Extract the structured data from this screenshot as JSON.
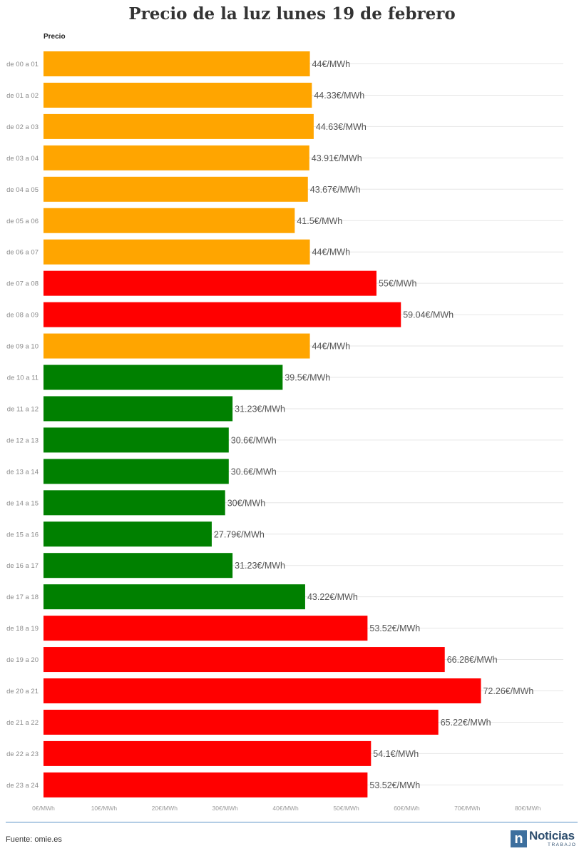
{
  "page": {
    "title": "Precio de la luz lunes 19 de febrero",
    "source": "Fuente: omie.es",
    "logo": {
      "mark": "n",
      "name": "Noticias",
      "sub": "TRABAJO"
    }
  },
  "chart_data": {
    "type": "bar",
    "orientation": "horizontal",
    "series_label": "Precio",
    "categories": [
      "de 00 a 01",
      "de 01 a 02",
      "de 02 a 03",
      "de 03 a 04",
      "de 04 a 05",
      "de 05 a 06",
      "de 06 a 07",
      "de 07 a 08",
      "de 08 a 09",
      "de 09 a 10",
      "de 10 a 11",
      "de 11 a 12",
      "de 12 a 13",
      "de 13 a 14",
      "de 14 a 15",
      "de 15 a 16",
      "de 16 a 17",
      "de 17 a 18",
      "de 18 a 19",
      "de 19 a 20",
      "de 20 a 21",
      "de 21 a 22",
      "de 22 a 23",
      "de 23 a 24"
    ],
    "values": [
      44,
      44.33,
      44.63,
      43.91,
      43.67,
      41.5,
      44,
      55,
      59.04,
      44,
      39.5,
      31.23,
      30.6,
      30.6,
      30,
      27.79,
      31.23,
      43.22,
      53.52,
      66.28,
      72.26,
      65.22,
      54.1,
      53.52
    ],
    "value_labels": [
      "44€/MWh",
      "44.33€/MWh",
      "44.63€/MWh",
      "43.91€/MWh",
      "43.67€/MWh",
      "41.5€/MWh",
      "44€/MWh",
      "55€/MWh",
      "59.04€/MWh",
      "44€/MWh",
      "39.5€/MWh",
      "31.23€/MWh",
      "30.6€/MWh",
      "30.6€/MWh",
      "30€/MWh",
      "27.79€/MWh",
      "31.23€/MWh",
      "43.22€/MWh",
      "53.52€/MWh",
      "66.28€/MWh",
      "72.26€/MWh",
      "65.22€/MWh",
      "54.1€/MWh",
      "53.52€/MWh"
    ],
    "bar_colors": [
      "orange",
      "orange",
      "orange",
      "orange",
      "orange",
      "orange",
      "orange",
      "red",
      "red",
      "orange",
      "green",
      "green",
      "green",
      "green",
      "green",
      "green",
      "green",
      "green",
      "red",
      "red",
      "red",
      "red",
      "red",
      "red"
    ],
    "colors": {
      "orange": "#ffa500",
      "red": "#ff0000",
      "green": "#008000"
    },
    "x_ticks": [
      0,
      10,
      20,
      30,
      40,
      50,
      60,
      70,
      80
    ],
    "x_tick_labels": [
      "0€/MWh",
      "10€/MWh",
      "20€/MWh",
      "30€/MWh",
      "40€/MWh",
      "50€/MWh",
      "60€/MWh",
      "70€/MWh",
      "80€/MWh"
    ],
    "xlim": [
      0,
      80
    ],
    "grid": true,
    "legend": "none"
  }
}
